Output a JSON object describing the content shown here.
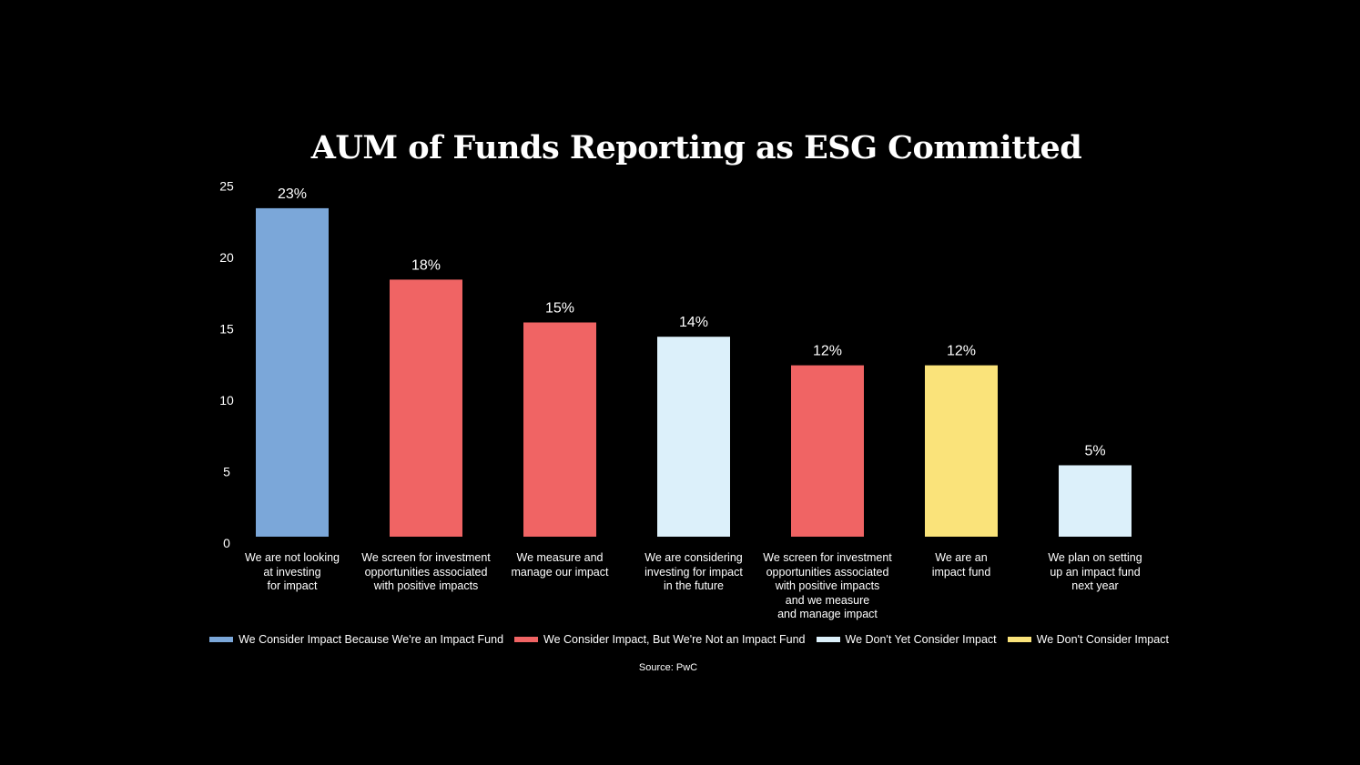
{
  "chart_data": {
    "type": "bar",
    "title": "AUM of Funds Reporting as ESG Committed",
    "categories": [
      "We are not looking\nat investing\nfor impact",
      "We screen for investment\nopportunities associated\nwith positive impacts",
      "We measure and\nmanage our impact",
      "We are considering\ninvesting for impact\nin the future",
      "We screen for investment\nopportunities associated\nwith positive impacts\nand we measure\nand manage impact",
      "We are an\nimpact fund",
      "We plan on setting\nup an impact fund\nnext year"
    ],
    "values": [
      23,
      18,
      15,
      14,
      12,
      12,
      5
    ],
    "data_labels": [
      "23%",
      "18%",
      "15%",
      "14%",
      "12%",
      "12%",
      "5%"
    ],
    "bar_groups": [
      0,
      1,
      1,
      2,
      1,
      3,
      2
    ],
    "ylim": [
      0,
      25
    ],
    "yticks": [
      0,
      5,
      10,
      15,
      20,
      25
    ],
    "grid": false,
    "legend_position": "bottom",
    "legend": [
      {
        "label": "We Consider Impact Because We're an Impact Fund",
        "color": "#7BA7D9"
      },
      {
        "label": "We Consider Impact, But We're Not an Impact Fund",
        "color": "#F06464"
      },
      {
        "label": "We Don't Yet Consider Impact",
        "color": "#DCF0FA"
      },
      {
        "label": "We Don't Consider Impact",
        "color": "#FAE37A"
      }
    ],
    "source": "Source: PwC"
  }
}
